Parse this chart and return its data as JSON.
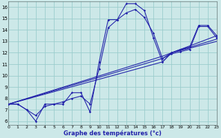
{
  "xlabel": "Graphe des températures (°c)",
  "bg_color": "#cce8e8",
  "grid_color": "#99cccc",
  "line_color": "#2222aa",
  "xlim": [
    0,
    23
  ],
  "ylim": [
    5.7,
    16.5
  ],
  "yticks": [
    6,
    7,
    8,
    9,
    10,
    11,
    12,
    13,
    14,
    15,
    16
  ],
  "xticks": [
    0,
    1,
    2,
    3,
    4,
    5,
    6,
    7,
    8,
    9,
    10,
    11,
    12,
    13,
    14,
    15,
    16,
    17,
    18,
    19,
    20,
    21,
    22,
    23
  ],
  "series": [
    {
      "x": [
        0,
        1,
        2,
        3,
        4,
        5,
        6,
        7,
        8,
        9,
        10,
        11,
        12,
        13,
        14,
        15,
        16,
        17,
        18,
        19,
        20,
        21,
        22,
        23
      ],
      "y": [
        7.5,
        7.5,
        7.0,
        6.0,
        7.5,
        7.5,
        7.5,
        8.5,
        8.5,
        6.8,
        11.2,
        14.9,
        14.9,
        16.3,
        16.3,
        15.7,
        13.3,
        11.2,
        12.0,
        12.3,
        12.5,
        14.4,
        14.4,
        13.5
      ],
      "marker": true
    },
    {
      "x": [
        0,
        1,
        2,
        3,
        4,
        5,
        6,
        7,
        8,
        9,
        10,
        11,
        12,
        13,
        14,
        15,
        16,
        17,
        18,
        19,
        20,
        21,
        22,
        23
      ],
      "y": [
        7.5,
        7.5,
        7.0,
        6.5,
        7.3,
        7.5,
        7.7,
        8.0,
        8.2,
        7.5,
        10.6,
        14.2,
        14.9,
        15.5,
        15.8,
        15.1,
        13.7,
        11.5,
        11.9,
        12.1,
        12.3,
        14.3,
        14.3,
        13.3
      ],
      "marker": true
    },
    {
      "x": [
        0,
        17,
        18,
        23
      ],
      "y": [
        7.5,
        11.2,
        12.0,
        13.5
      ],
      "marker": false
    },
    {
      "x": [
        0,
        17,
        18,
        23
      ],
      "y": [
        7.5,
        11.5,
        12.0,
        13.2
      ],
      "marker": false
    },
    {
      "x": [
        0,
        17,
        18,
        23
      ],
      "y": [
        7.5,
        11.7,
        12.0,
        13.0
      ],
      "marker": false
    }
  ]
}
